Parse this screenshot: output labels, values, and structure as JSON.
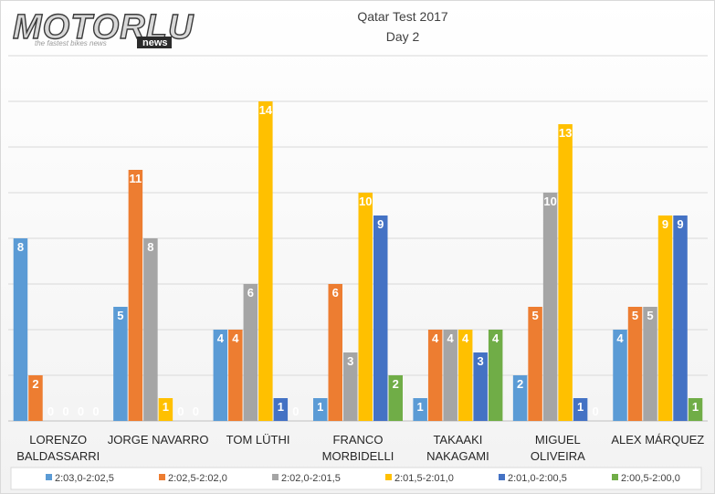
{
  "logo": {
    "name": "MOTORLU",
    "badge": "news",
    "tagline": "the fastest bikes news"
  },
  "chart_data": {
    "type": "bar",
    "title": "Qatar Test 2017",
    "subtitle": "Day 2",
    "categories": [
      [
        "LORENZO",
        "BALDASSARRI"
      ],
      [
        "JORGE NAVARRO"
      ],
      [
        "TOM LÜTHI"
      ],
      [
        "FRANCO",
        "MORBIDELLI"
      ],
      [
        "TAKAAKI",
        "NAKAGAMI"
      ],
      [
        "MIGUEL",
        "OLIVEIRA"
      ],
      [
        "ALEX MÁRQUEZ"
      ]
    ],
    "series": [
      {
        "name": "2:03,0-2:02,5",
        "color": "#5b9bd5",
        "values": [
          8,
          5,
          4,
          1,
          1,
          2,
          4
        ]
      },
      {
        "name": "2:02,5-2:02,0",
        "color": "#ed7d31",
        "values": [
          2,
          11,
          4,
          6,
          4,
          5,
          5
        ]
      },
      {
        "name": "2:02,0-2:01,5",
        "color": "#a5a5a5",
        "values": [
          0,
          8,
          6,
          3,
          4,
          10,
          5
        ]
      },
      {
        "name": "2:01,5-2:01,0",
        "color": "#ffc000",
        "values": [
          0,
          1,
          14,
          10,
          4,
          13,
          9
        ]
      },
      {
        "name": "2:01,0-2:00,5",
        "color": "#4472c4",
        "values": [
          0,
          0,
          1,
          9,
          3,
          1,
          9
        ]
      },
      {
        "name": "2:00,5-2:00,0",
        "color": "#70ad47",
        "values": [
          0,
          0,
          0,
          2,
          4,
          0,
          1
        ]
      }
    ],
    "ylim": [
      0,
      16
    ],
    "grid": true,
    "legend": "bottom",
    "data_labels": true
  }
}
